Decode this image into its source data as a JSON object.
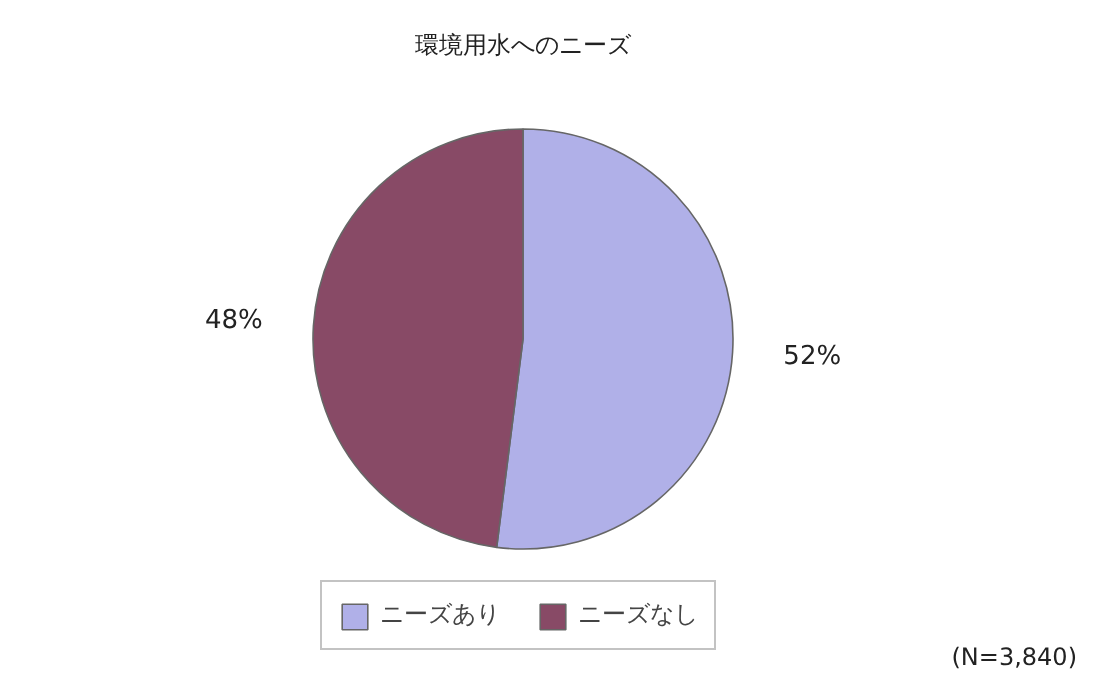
{
  "chart_data": {
    "type": "pie",
    "title": "環境用水へのニーズ",
    "categories": [
      "ニーズあり",
      "ニーズなし"
    ],
    "values": [
      52,
      48
    ],
    "colors": [
      "#b0b0e8",
      "#884a66"
    ],
    "value_labels": [
      "52%",
      "48%"
    ],
    "legend": "bottom",
    "annotations": [
      "(N=3,840)"
    ]
  }
}
